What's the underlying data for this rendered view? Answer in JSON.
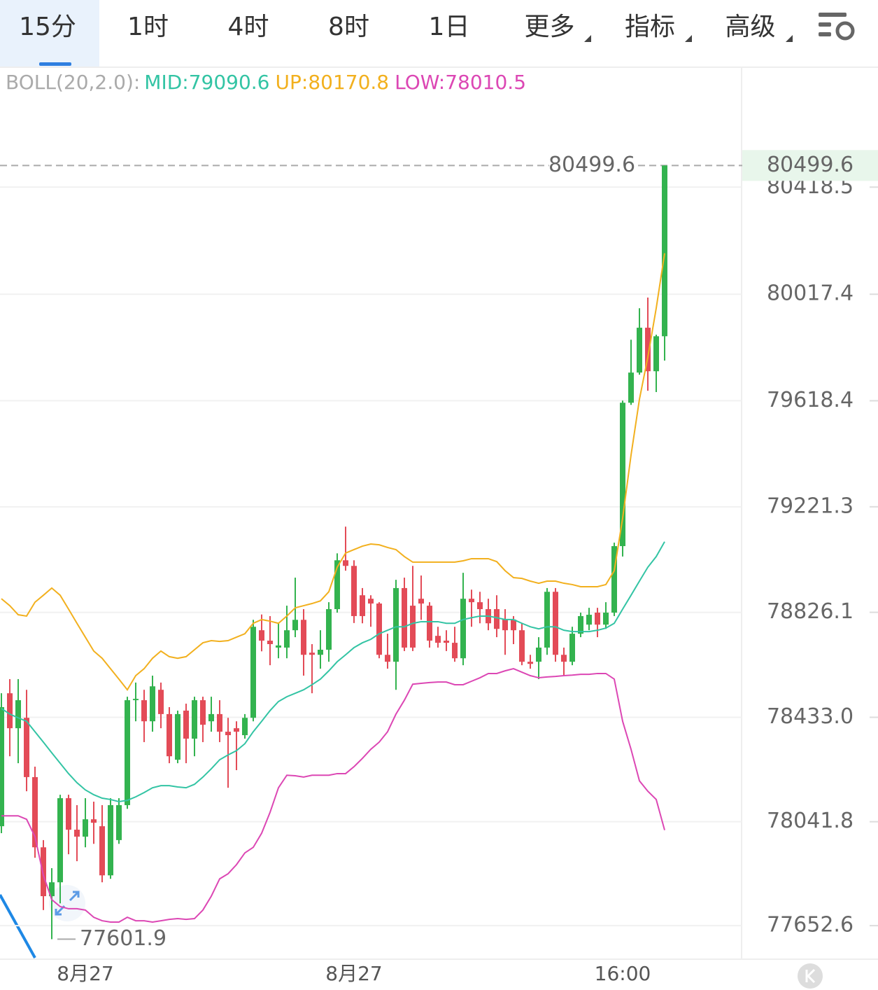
{
  "tabs": {
    "items": [
      "15分",
      "1时",
      "4时",
      "8时",
      "1日",
      "更多",
      "指标",
      "高级"
    ],
    "active": 0
  },
  "chart_data": {
    "type": "candlestick",
    "categories": [
      null,
      null,
      null,
      null,
      null,
      null,
      null,
      null,
      null,
      null,
      "8月27",
      null,
      null,
      null,
      null,
      null,
      null,
      null,
      null,
      null,
      null,
      null,
      null,
      null,
      null,
      null,
      null,
      null,
      null,
      null,
      null,
      null,
      null,
      null,
      null,
      null,
      null,
      null,
      null,
      null,
      null,
      null,
      "8月27",
      null,
      null,
      null,
      null,
      null,
      null,
      null,
      null,
      null,
      null,
      null,
      null,
      null,
      null,
      null,
      null,
      null,
      null,
      null,
      null,
      null,
      null,
      null,
      null,
      null,
      null,
      null,
      null,
      null,
      null,
      null,
      "16:00",
      null,
      null,
      null,
      null,
      null
    ],
    "open": [
      78025,
      78523,
      78392,
      78431,
      78209,
      77946,
      77763,
      77815,
      78130,
      78012,
      77986,
      78051,
      78025,
      77841,
      77973,
      78104,
      78497,
      78497,
      78418,
      78536,
      78445,
      78274,
      78458,
      78353,
      78497,
      78418,
      78445,
      78379,
      78392,
      78366,
      78431,
      78759,
      78720,
      78694,
      78694,
      78759,
      78798,
      78675,
      78667,
      78686,
      78838,
      79021,
      79000,
      78890,
      78877,
      78859,
      78667,
      78641,
      78917,
      78851,
      78877,
      78851,
      78738,
      78720,
      78712,
      78654,
      78877,
      78864,
      78838,
      78838,
      78799,
      78799,
      78759,
      78641,
      78641,
      78694,
      78903,
      78667,
      78641,
      78746,
      78780,
      78825,
      78780,
      78825,
      79074,
      79611,
      79724,
      79892,
      79729,
      79860
    ],
    "high": [
      78523,
      78576,
      78576,
      78536,
      78248,
      77973,
      77868,
      78143,
      78143,
      78104,
      78130,
      78117,
      78104,
      78130,
      78130,
      78510,
      78563,
      78536,
      78589,
      78563,
      78471,
      78458,
      78484,
      78510,
      78510,
      78510,
      78497,
      78431,
      78418,
      78445,
      78798,
      78818,
      78812,
      78786,
      78851,
      78956,
      78838,
      78707,
      78759,
      78864,
      79047,
      79147,
      79021,
      78917,
      78890,
      78864,
      78746,
      78948,
      78956,
      79000,
      78964,
      78864,
      78772,
      78759,
      78772,
      78974,
      78911,
      78903,
      78877,
      78890,
      78838,
      78812,
      78785,
      78667,
      78733,
      78917,
      78917,
      78694,
      78772,
      78825,
      78843,
      78843,
      78864,
      79087,
      79619,
      79847,
      79965,
      80005,
      79866,
      80499.6
    ],
    "low": [
      77999,
      78287,
      78261,
      78156,
      77907,
      77711,
      77601.9,
      77736,
      77920,
      77894,
      77946,
      77959,
      77815,
      77828,
      77959,
      78090,
      78418,
      78340,
      78379,
      78392,
      78261,
      78261,
      78261,
      78287,
      78340,
      78379,
      78340,
      78169,
      78235,
      78353,
      78418,
      78680,
      78628,
      78654,
      78654,
      78733,
      78589,
      78523,
      78615,
      78641,
      78825,
      78982,
      78786,
      78785,
      78772,
      78654,
      78615,
      78536,
      78681,
      78681,
      78798,
      78694,
      78694,
      78681,
      78641,
      78628,
      78772,
      78785,
      78759,
      78733,
      78667,
      78707,
      78628,
      78615,
      78576,
      78667,
      78641,
      78589,
      78628,
      78733,
      78759,
      78733,
      78764,
      78812,
      79035,
      79603,
      79716,
      79656,
      79651,
      79769
    ],
    "close": [
      78471,
      78392,
      78497,
      78209,
      77946,
      77763,
      77815,
      78130,
      78012,
      77986,
      78051,
      78038,
      77841,
      78104,
      78104,
      78497,
      78502,
      78418,
      78549,
      78445,
      78287,
      78445,
      78353,
      78497,
      78405,
      78445,
      78379,
      78366,
      78379,
      78431,
      78772,
      78720,
      78707,
      78702,
      78759,
      78798,
      78667,
      78667,
      78686,
      78838,
      79021,
      79000,
      78812,
      78812,
      78859,
      78667,
      78641,
      78917,
      78694,
      78694,
      78859,
      78720,
      78712,
      78712,
      78654,
      78877,
      78864,
      78838,
      78785,
      78764,
      78759,
      78759,
      78641,
      78633,
      78694,
      78903,
      78667,
      78641,
      78746,
      78812,
      78817,
      78780,
      78825,
      79074,
      79611,
      79724,
      79892,
      79729,
      79860,
      80499.6
    ],
    "up_color": "#33b34f",
    "down_color": "#e34b57",
    "series": [
      {
        "color": "#33c4a4",
        "values": [
          78466,
          78445,
          78431,
          78418,
          78379,
          78340,
          78300,
          78261,
          78222,
          78188,
          78161,
          78143,
          78130,
          78125,
          78117,
          78122,
          78135,
          78151,
          78169,
          78177,
          78177,
          78172,
          78169,
          78182,
          78209,
          78240,
          78274,
          78292,
          78308,
          78334,
          78379,
          78418,
          78458,
          78492,
          78510,
          78523,
          78536,
          78555,
          78576,
          78607,
          78641,
          78667,
          78694,
          78712,
          78725,
          78746,
          78759,
          78772,
          78772,
          78785,
          78791,
          78791,
          78791,
          78785,
          78785,
          78799,
          78806,
          78812,
          78812,
          78806,
          78799,
          78799,
          78785,
          78772,
          78764,
          78772,
          78772,
          78759,
          78754,
          78754,
          78754,
          78759,
          78767,
          78785,
          78838,
          78890,
          78943,
          78995,
          79035,
          79090.6
        ]
      },
      {
        "color": "#f2b01e",
        "values": [
          78877,
          78851,
          78817,
          78812,
          78864,
          78890,
          78917,
          78890,
          78838,
          78785,
          78733,
          78681,
          78654,
          78615,
          78576,
          78536,
          78589,
          78615,
          78654,
          78681,
          78660,
          78654,
          78660,
          78686,
          78712,
          78720,
          78717,
          78720,
          78733,
          78746,
          78785,
          78799,
          78793,
          78785,
          78812,
          78843,
          78851,
          78859,
          78869,
          78903,
          78995,
          79048,
          79061,
          79074,
          79082,
          79079,
          79069,
          79061,
          79035,
          79014,
          79014,
          79014,
          79014,
          79014,
          79014,
          79019,
          79027,
          79027,
          79027,
          79016,
          78982,
          78956,
          78953,
          78943,
          78935,
          78943,
          78943,
          78935,
          78930,
          78922,
          78922,
          78922,
          78930,
          78982,
          79179,
          79415,
          79624,
          79782,
          79965,
          80170.8
        ]
      },
      {
        "color": "#dc47b4",
        "values": [
          78064,
          78064,
          78064,
          78051,
          77986,
          77841,
          77750,
          77724,
          77716,
          77716,
          77711,
          77684,
          77671,
          77666,
          77666,
          77684,
          77671,
          77671,
          77666,
          77671,
          77676,
          77679,
          77676,
          77679,
          77711,
          77763,
          77828,
          77847,
          77881,
          77925,
          77946,
          77999,
          78077,
          78169,
          78216,
          78214,
          78209,
          78216,
          78216,
          78216,
          78222,
          78222,
          78248,
          78279,
          78313,
          78340,
          78379,
          78445,
          78497,
          78557,
          78560,
          78563,
          78565,
          78565,
          78555,
          78555,
          78568,
          78581,
          78597,
          78597,
          78607,
          78615,
          78602,
          78589,
          78581,
          78584,
          78586,
          78589,
          78591,
          78594,
          78594,
          78597,
          78597,
          78576,
          78418,
          78313,
          78195,
          78156,
          78125,
          78010.5
        ]
      }
    ],
    "indicator_label": "BOLL(20,2.0):",
    "indicator_values": [
      "MID:79090.6",
      "UP:80170.8",
      "LOW:78010.5"
    ],
    "ylim": [
      77527,
      80865
    ],
    "yticks": [
      80418.5,
      80017.4,
      79618.4,
      79221.3,
      78826.1,
      {
        "value": 78433.0,
        "label": "78433.0"
      },
      78041.8,
      77652.6
    ],
    "grid": true,
    "price_line": {
      "value": 80499.6,
      "label": "80499.6"
    },
    "low_marker": {
      "value": 77601.9,
      "label": "77601.9"
    }
  }
}
